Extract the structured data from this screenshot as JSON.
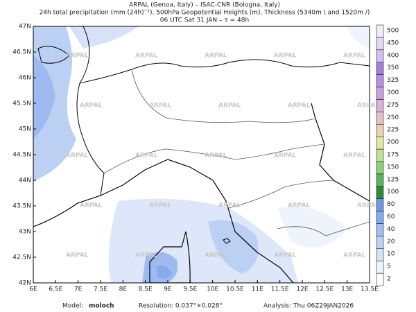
{
  "header": {
    "lines": [
      "ARPAL (Genoa, Italy)  –  ISAC-CNR (Bologna, Italy)",
      "24h total precipitation (mm (24h)⁻¹), 500hPa Geopotential Heights (m), Thickness (5340m \\ and 1520m /)",
      "06 UTC Sat 31 JAN  –  τ = 48h"
    ]
  },
  "map": {
    "lon_labels": [
      "6E",
      "6.5E",
      "7E",
      "7.5E",
      "8E",
      "8.5E",
      "9E",
      "9.5E",
      "10E",
      "10.5E",
      "11E",
      "11.5E",
      "12E",
      "12.5E",
      "13E",
      "13.5E"
    ],
    "lat_labels": [
      "42N",
      "42.5N",
      "43N",
      "43.5N",
      "44N",
      "44.5N",
      "45N",
      "45.5N",
      "46N",
      "46.5N",
      "47N"
    ],
    "watermark": "ARPAL"
  },
  "colorbar": {
    "labels": [
      "2",
      "5",
      "10",
      "20",
      "40",
      "60",
      "80",
      "100",
      "125",
      "150",
      "175",
      "200",
      "225",
      "250",
      "275",
      "300",
      "325",
      "350",
      "400",
      "450",
      "500"
    ],
    "colors": [
      "#ffffff",
      "#eef3fc",
      "#d6e2f8",
      "#bcd0f4",
      "#a2bef0",
      "#87aaeb",
      "#6f97e5",
      "#2e8b3c",
      "#5fb35f",
      "#8fce7a",
      "#bfe09a",
      "#e0e8a8",
      "#e8d2b4",
      "#e8c0c8",
      "#dcb0d8",
      "#c8a0e0",
      "#b490e0",
      "#a080d8",
      "#d0c0f0",
      "#e4d8f6",
      "#f2ecfa"
    ]
  },
  "footer": {
    "model_label": "Model:",
    "model": "moloch",
    "resolution": "Resolution: 0.037°×0.028°",
    "analysis": "Analysis: Thu 06Z29JAN2026"
  }
}
